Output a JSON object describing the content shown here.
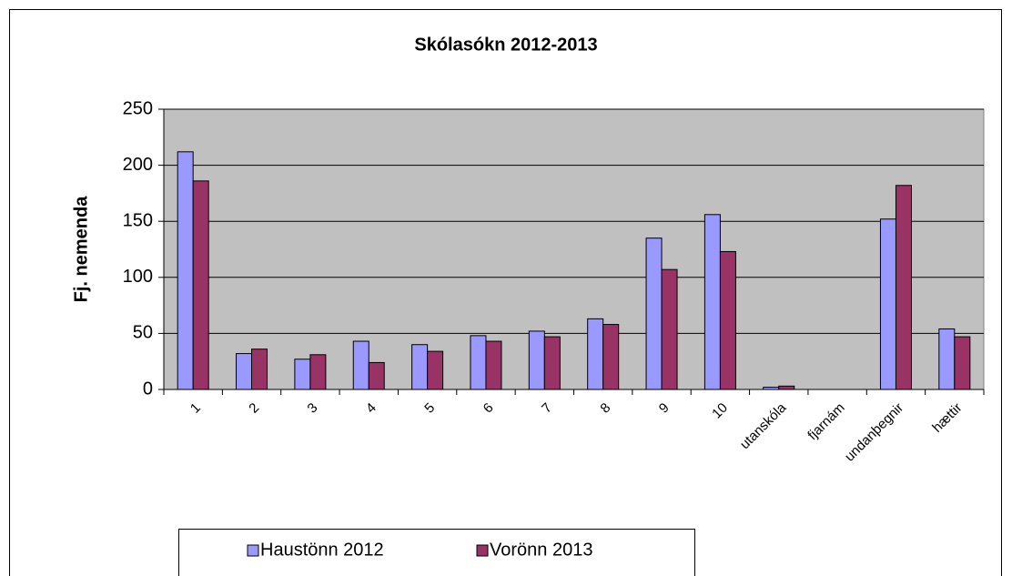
{
  "chart_data": {
    "type": "bar",
    "title": "Skólasókn 2012-2013",
    "y_label": "Fj. nemenda",
    "categories": [
      "1",
      "2",
      "3",
      "4",
      "5",
      "6",
      "7",
      "8",
      "9",
      "10",
      "utanskóla",
      "fjarnám",
      "undanþegnir",
      "hættir"
    ],
    "series": [
      {
        "name": "Haustönn 2012",
        "color": "#9999ff",
        "values": [
          212,
          32,
          27,
          43,
          40,
          48,
          52,
          63,
          135,
          156,
          2,
          0,
          152,
          54
        ]
      },
      {
        "name": "Vorönn 2013",
        "color": "#993366",
        "values": [
          186,
          36,
          31,
          24,
          34,
          43,
          47,
          58,
          107,
          123,
          3,
          0,
          182,
          47
        ]
      }
    ],
    "ylim": [
      0,
      250
    ],
    "yticks": [
      0,
      50,
      100,
      150,
      200,
      250
    ],
    "grid": true,
    "legend": "bottom"
  }
}
